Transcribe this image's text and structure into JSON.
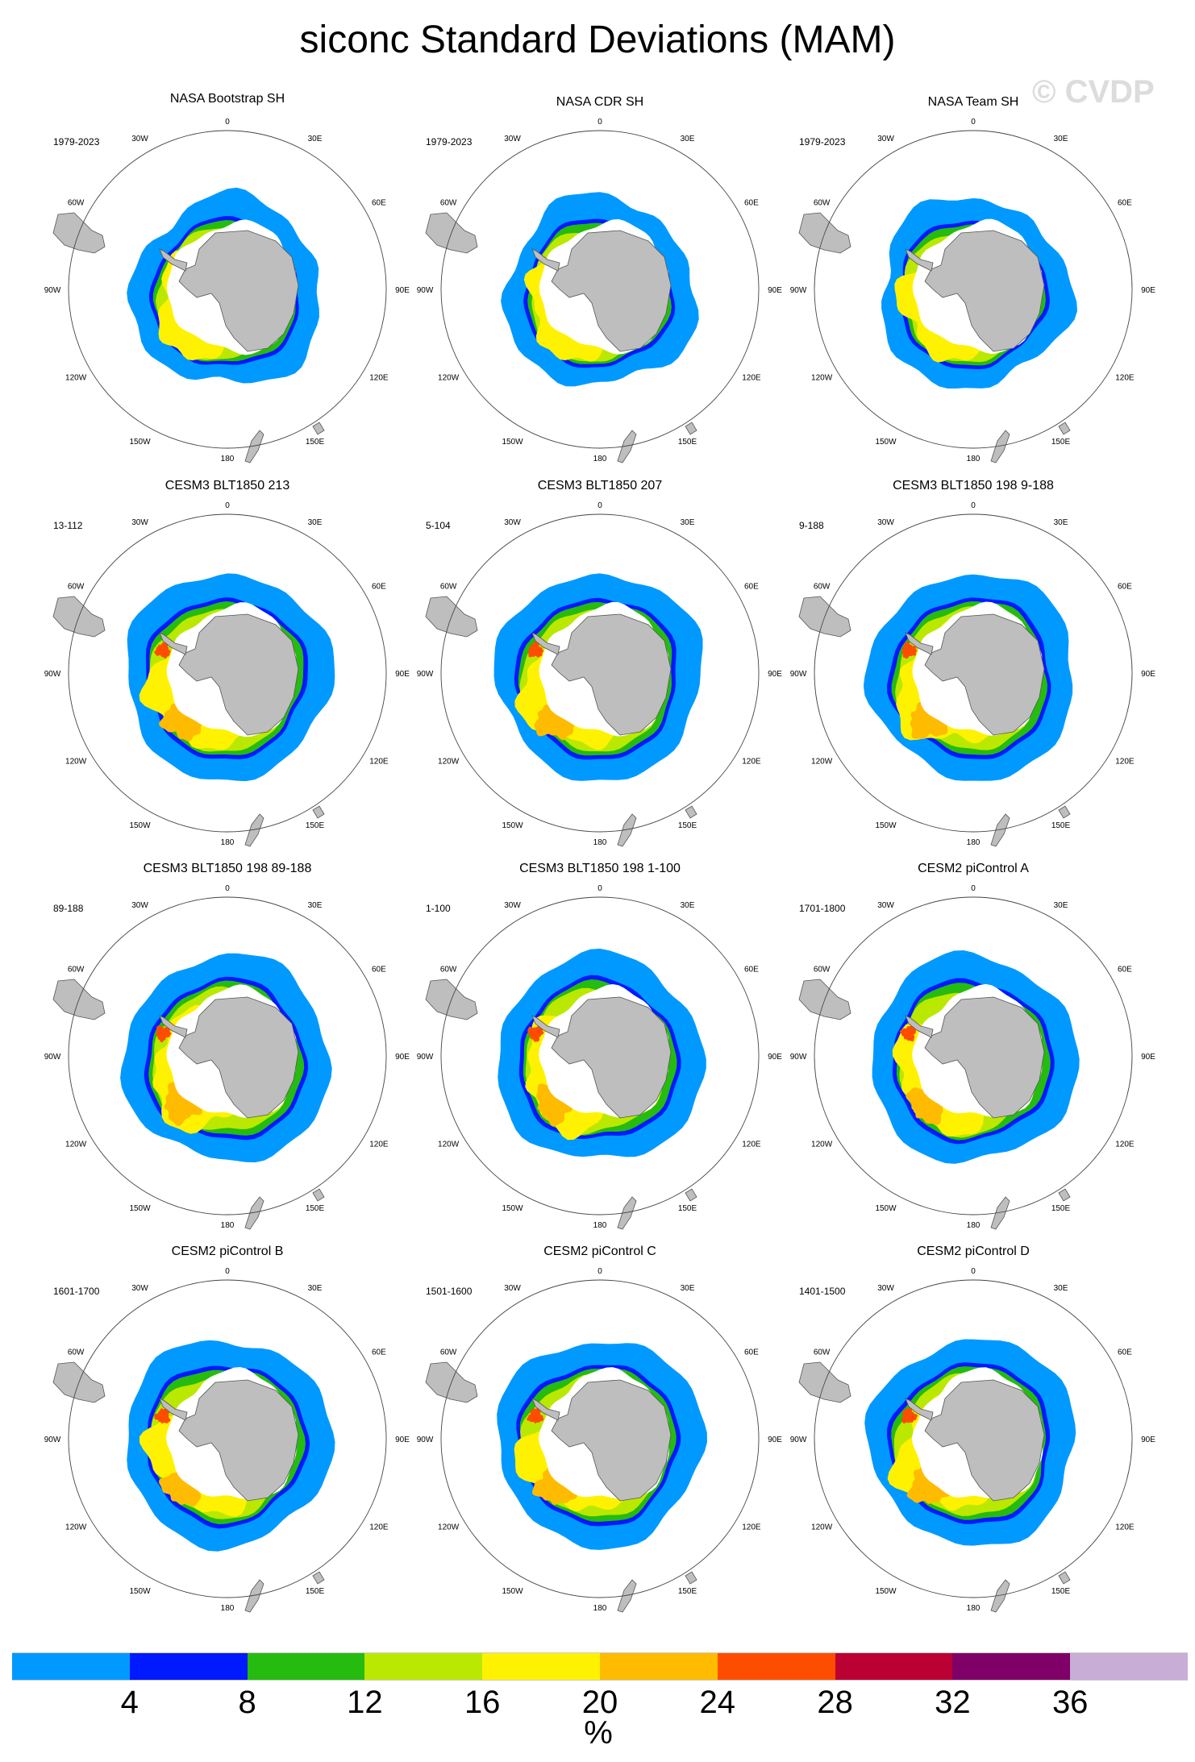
{
  "title": "siconc Standard Deviations (MAM)",
  "watermark": "© CVDP",
  "chart_data": {
    "type": "heatmap",
    "title": "siconc Standard Deviations (MAM)",
    "projection": "south polar stereographic",
    "lon_labels": [
      "0",
      "30E",
      "60E",
      "90E",
      "120E",
      "150E",
      "180",
      "150W",
      "120W",
      "90W",
      "60W",
      "30W"
    ],
    "panels": [
      {
        "title": "NASA Bootstrap SH",
        "period": "1979-2023",
        "seed": 1
      },
      {
        "title": "NASA CDR SH",
        "period": "1979-2023",
        "seed": 2
      },
      {
        "title": "NASA Team SH",
        "period": "1979-2023",
        "seed": 3
      },
      {
        "title": "CESM3 BLT1850 213",
        "period": "13-112",
        "seed": 4
      },
      {
        "title": "CESM3 BLT1850 207",
        "period": "5-104",
        "seed": 5
      },
      {
        "title": "CESM3 BLT1850 198 9-188",
        "period": "9-188",
        "seed": 6
      },
      {
        "title": "CESM3 BLT1850 198 89-188",
        "period": "89-188",
        "seed": 7
      },
      {
        "title": "CESM3 BLT1850 198 1-100",
        "period": "1-100",
        "seed": 8
      },
      {
        "title": "CESM2 piControl A",
        "period": "1701-1800",
        "seed": 9
      },
      {
        "title": "CESM2 piControl B",
        "period": "1601-1700",
        "seed": 10
      },
      {
        "title": "CESM2 piControl C",
        "period": "1501-1600",
        "seed": 11
      },
      {
        "title": "CESM2 piControl D",
        "period": "1401-1500",
        "seed": 12
      }
    ],
    "colorbar": {
      "levels": [
        "4",
        "8",
        "12",
        "16",
        "20",
        "24",
        "28",
        "32",
        "36"
      ],
      "colors": [
        "#0099ff",
        "#0019ff",
        "#25bb0f",
        "#bbe800",
        "#fff200",
        "#ffbb00",
        "#ff4d00",
        "#bb0033",
        "#7f0066",
        "#c8aed6"
      ],
      "unit": "%"
    }
  }
}
